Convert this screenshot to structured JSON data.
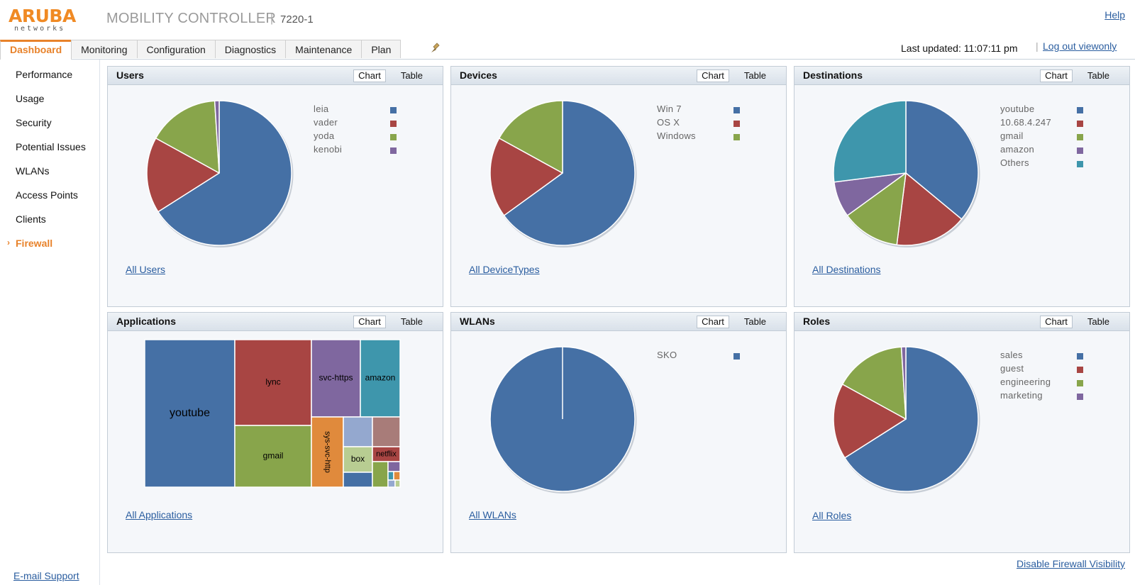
{
  "header": {
    "logo_text": "ARUBA",
    "logo_sub": "networks",
    "app_title": "MOBILITY CONTROLLER",
    "separator": "|",
    "model": "7220-1",
    "help": "Help"
  },
  "tabs": [
    {
      "label": "Dashboard",
      "active": true
    },
    {
      "label": "Monitoring"
    },
    {
      "label": "Configuration"
    },
    {
      "label": "Diagnostics"
    },
    {
      "label": "Maintenance"
    },
    {
      "label": "Plan"
    }
  ],
  "status": {
    "last_updated": "Last updated:  11:07:11 pm",
    "separator": "|",
    "logout": "Log out viewonly"
  },
  "sidebar": {
    "items": [
      {
        "label": "Performance"
      },
      {
        "label": "Usage"
      },
      {
        "label": "Security"
      },
      {
        "label": "Potential Issues"
      },
      {
        "label": "WLANs"
      },
      {
        "label": "Access Points"
      },
      {
        "label": "Clients"
      },
      {
        "label": "Firewall",
        "active": true
      }
    ],
    "active_marker": "›",
    "email_support": "E-mail Support"
  },
  "colors": {
    "blue": "#4570a5",
    "red": "#a84543",
    "green": "#88a54b",
    "purple": "#7f679f",
    "teal": "#3e96ac",
    "orange": "#e08a3c",
    "light_blue": "#94a8cf",
    "light_green": "#b8cd92",
    "mauve": "#a87c79"
  },
  "segmented": {
    "chart": "Chart",
    "table": "Table"
  },
  "panels": {
    "users": {
      "title": "Users",
      "link": "All Users",
      "legend": [
        {
          "label": "leia",
          "color": "#4570a5"
        },
        {
          "label": "vader",
          "color": "#a84543"
        },
        {
          "label": "yoda",
          "color": "#88a54b"
        },
        {
          "label": "kenobi",
          "color": "#7f679f"
        }
      ]
    },
    "devices": {
      "title": "Devices",
      "link": "All DeviceTypes",
      "legend": [
        {
          "label": "Win 7",
          "color": "#4570a5"
        },
        {
          "label": "OS X",
          "color": "#a84543"
        },
        {
          "label": "Windows",
          "color": "#88a54b"
        }
      ]
    },
    "destinations": {
      "title": "Destinations",
      "link": "All Destinations",
      "legend": [
        {
          "label": "youtube",
          "color": "#4570a5"
        },
        {
          "label": "10.68.4.247",
          "color": "#a84543"
        },
        {
          "label": "gmail",
          "color": "#88a54b"
        },
        {
          "label": "amazon",
          "color": "#7f679f"
        },
        {
          "label": "Others",
          "color": "#3e96ac"
        }
      ]
    },
    "applications": {
      "title": "Applications",
      "link": "All Applications"
    },
    "wlans": {
      "title": "WLANs",
      "link": "All WLANs",
      "legend": [
        {
          "label": "SKO",
          "color": "#4570a5"
        }
      ]
    },
    "roles": {
      "title": "Roles",
      "link": "All Roles",
      "legend": [
        {
          "label": "sales",
          "color": "#4570a5"
        },
        {
          "label": "guest",
          "color": "#a84543"
        },
        {
          "label": "engineering",
          "color": "#88a54b"
        },
        {
          "label": "marketing",
          "color": "#7f679f"
        }
      ]
    }
  },
  "chart_data": [
    {
      "type": "pie",
      "categories": [
        "leia",
        "vader",
        "yoda",
        "kenobi"
      ],
      "values": [
        66,
        17,
        16,
        1
      ]
    },
    {
      "type": "pie",
      "categories": [
        "Win 7",
        "OS X",
        "Windows"
      ],
      "values": [
        65,
        18,
        17
      ]
    },
    {
      "type": "pie",
      "categories": [
        "youtube",
        "10.68.4.247",
        "gmail",
        "amazon",
        "Others"
      ],
      "values": [
        36,
        16,
        13,
        8,
        27
      ]
    },
    {
      "type": "treemap",
      "items": [
        {
          "label": "youtube",
          "value": 34
        },
        {
          "label": "lync",
          "value": 17
        },
        {
          "label": "gmail",
          "value": 13
        },
        {
          "label": "svc-https",
          "value": 8
        },
        {
          "label": "amazon",
          "value": 7
        },
        {
          "label": "sys-svc-http",
          "value": 6
        },
        {
          "label": "box",
          "value": 2
        },
        {
          "label": "netflix",
          "value": 1.5
        }
      ]
    },
    {
      "type": "pie",
      "categories": [
        "SKO"
      ],
      "values": [
        100
      ]
    },
    {
      "type": "pie",
      "categories": [
        "sales",
        "guest",
        "engineering",
        "marketing"
      ],
      "values": [
        66,
        17,
        16,
        1
      ]
    }
  ],
  "footer": {
    "disable_firewall": "Disable Firewall Visibility"
  }
}
